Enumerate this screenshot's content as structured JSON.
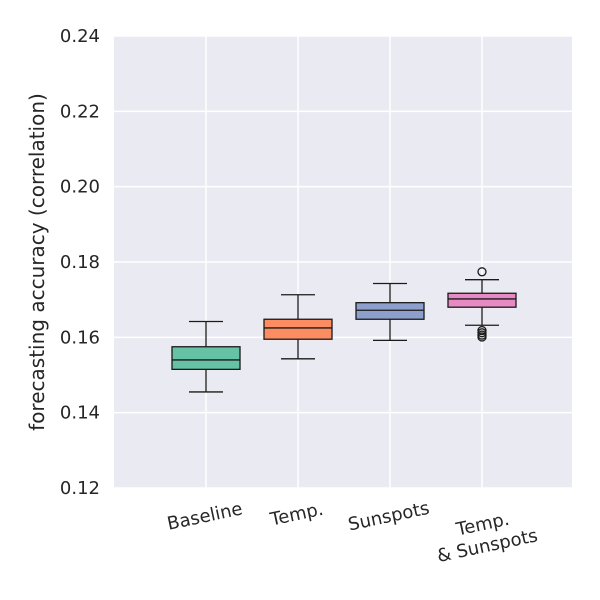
{
  "chart_data": {
    "type": "box",
    "title": "",
    "xlabel": "",
    "ylabel": "forecasting accuracy (correlation)",
    "ylim": [
      0.12,
      0.24
    ],
    "yticks": [
      "0.12",
      "0.14",
      "0.16",
      "0.18",
      "0.20",
      "0.22",
      "0.24"
    ],
    "grid": true,
    "background_color": "#eaeaf2",
    "categories": [
      {
        "lines": [
          "Baseline"
        ]
      },
      {
        "lines": [
          "Temp."
        ]
      },
      {
        "lines": [
          "Sunspots"
        ]
      },
      {
        "lines": [
          "Temp.",
          "& Sunspots"
        ]
      }
    ],
    "series": [
      {
        "name": "Baseline",
        "color": "#66c2a5",
        "whisker_low": 0.1455,
        "q1": 0.1515,
        "median": 0.154,
        "q3": 0.1575,
        "whisker_high": 0.1642,
        "outliers": []
      },
      {
        "name": "Temp.",
        "color": "#fc8d62",
        "whisker_low": 0.1543,
        "q1": 0.1595,
        "median": 0.1625,
        "q3": 0.1648,
        "whisker_high": 0.1713,
        "outliers": []
      },
      {
        "name": "Sunspots",
        "color": "#8da0cb",
        "whisker_low": 0.1592,
        "q1": 0.1648,
        "median": 0.1672,
        "q3": 0.1692,
        "whisker_high": 0.1743,
        "outliers": []
      },
      {
        "name": "Temp. & Sunspots",
        "color": "#e78ac3",
        "whisker_low": 0.1632,
        "q1": 0.168,
        "median": 0.1702,
        "q3": 0.1717,
        "whisker_high": 0.1753,
        "outliers": [
          0.1774,
          0.1618,
          0.1612,
          0.1606,
          0.1601
        ]
      }
    ]
  }
}
